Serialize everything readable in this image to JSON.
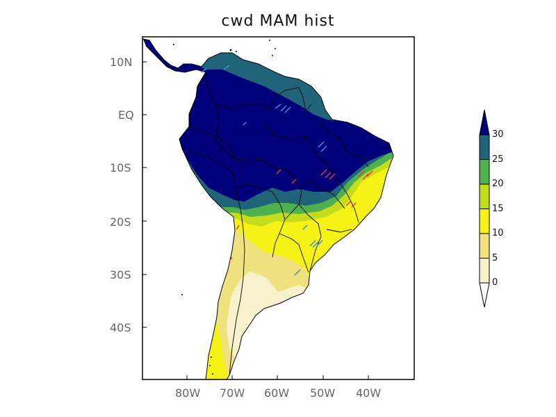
{
  "title": "cwd MAM hist",
  "lat_ticks": [
    "10N",
    "EQ",
    "10S",
    "20S",
    "30S",
    "40S"
  ],
  "lon_ticks": [
    "80W",
    "70W",
    "60W",
    "50W",
    "40W"
  ],
  "colorbar": {
    "levels": [
      "0",
      "5",
      "10",
      "15",
      "20",
      "25",
      "30"
    ],
    "colors": [
      "#f8f2cc",
      "#efe27e",
      "#f6f216",
      "#c4dc1a",
      "#4fb04f",
      "#1f6478",
      "#00007a"
    ]
  },
  "colors": {
    "land_fill": "#f8f2cc",
    "ocean": "#ffffff",
    "border": "#000000",
    "stipple_blue": "#3a8fd8",
    "stipple_red": "#e03a3a"
  }
}
